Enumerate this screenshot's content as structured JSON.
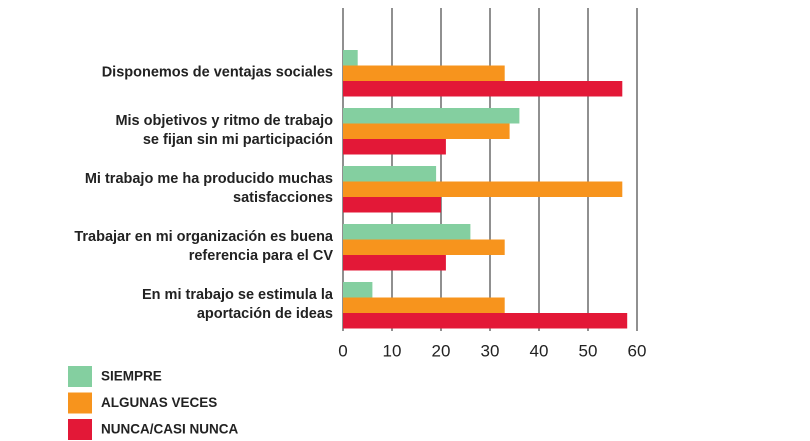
{
  "chart_data": {
    "type": "hbar",
    "categories": [
      "Disponemos de ventajas sociales",
      "Mis objetivos y ritmo de trabajo\nse fijan sin mi participación",
      "Mi trabajo me ha producido muchas\nsatisfacciones",
      "Trabajar en mi organización es buena\nreferencia para el CV",
      "En mi trabajo se estimula la\naportación de ideas"
    ],
    "series": [
      {
        "name": "SIEMPRE",
        "color": "#84cfa0",
        "values": [
          3,
          36,
          19,
          26,
          6
        ]
      },
      {
        "name": "ALGUNAS VECES",
        "color": "#f7941d",
        "values": [
          33,
          34,
          57,
          33,
          33
        ]
      },
      {
        "name": "NUNCA/CASI NUNCA",
        "color": "#e31837",
        "values": [
          57,
          21,
          20,
          21,
          58
        ]
      }
    ],
    "xlim": [
      0,
      60
    ],
    "xticks": [
      0,
      10,
      20,
      30,
      40,
      50,
      60
    ],
    "grid": true
  }
}
